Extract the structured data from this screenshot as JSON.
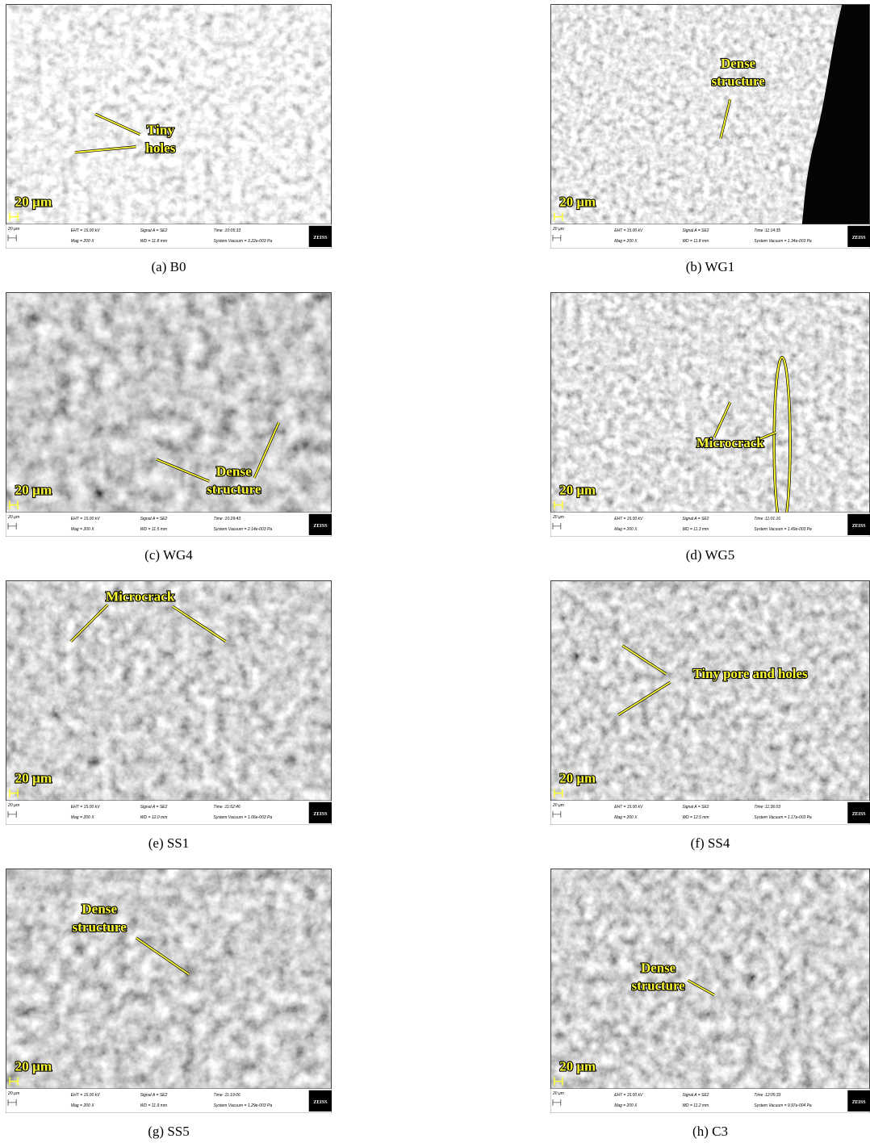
{
  "panels": [
    {
      "caption": "(a) B0",
      "annotations": [
        [
          "Tiny",
          "holes"
        ]
      ],
      "scale_bar": "20 µm",
      "info": {
        "scale": "20 µm",
        "eht": "EHT = 15.00 kV",
        "mag": "Mag = 200 X",
        "signal": "Signal A = SE2",
        "wd": "WD = 11.8 mm",
        "time": "Time :10:05:33",
        "vacuum": "System Vacuum = 3.22e-003 Pa",
        "brand": "ZEISS"
      }
    },
    {
      "caption": "(b) WG1",
      "annotations": [
        [
          "Dense",
          "structure"
        ]
      ],
      "scale_bar": "20 µm",
      "info": {
        "scale": "20 µm",
        "eht": "EHT = 15.00 kV",
        "mag": "Mag = 200 X",
        "signal": "Signal A = SE2",
        "wd": "WD = 11.8 mm",
        "time": "Time :11:14:35",
        "vacuum": "System Vacuum = 1.34e-003 Pa",
        "brand": "ZEISS"
      }
    },
    {
      "caption": "(c) WG4",
      "annotations": [
        [
          "Dense",
          "structure"
        ]
      ],
      "scale_bar": "20 µm",
      "info": {
        "scale": "20 µm",
        "eht": "EHT = 15.00 kV",
        "mag": "Mag = 200 X",
        "signal": "Signal A = SE2",
        "wd": "WD = 11.5 mm",
        "time": "Time :10:29:43",
        "vacuum": "System Vacuum = 2.14e-003 Pa",
        "brand": "ZEISS"
      }
    },
    {
      "caption": "(d) WG5",
      "annotations": [
        [
          "Microcrack"
        ]
      ],
      "scale_bar": "20 µm",
      "info": {
        "scale": "20 µm",
        "eht": "EHT = 15.00 kV",
        "mag": "Mag = 200 X",
        "signal": "Signal A = SE2",
        "wd": "WD = 11.3 mm",
        "time": "Time :11:01:16",
        "vacuum": "System Vacuum = 1.49e-003 Pa",
        "brand": "ZEISS"
      }
    },
    {
      "caption": "(e) SS1",
      "annotations": [
        [
          "Microcrack"
        ]
      ],
      "scale_bar": "20 µm",
      "info": {
        "scale": "20 µm",
        "eht": "EHT = 15.00 kV",
        "mag": "Mag = 200 X",
        "signal": "Signal A = SE2",
        "wd": "WD = 12.0 mm",
        "time": "Time :11:52:46",
        "vacuum": "System Vacuum = 1.06e-003 Pa",
        "brand": "ZEISS"
      }
    },
    {
      "caption": "(f) SS4",
      "annotations": [
        [
          "Tiny pore and holes"
        ]
      ],
      "scale_bar": "20 µm",
      "info": {
        "scale": "20 µm",
        "eht": "EHT = 15.00 kV",
        "mag": "Mag = 200 X",
        "signal": "Signal A = SE2",
        "wd": "WD = 12.5 mm",
        "time": "Time :11:36:03",
        "vacuum": "System Vacuum = 1.17e-003 Pa",
        "brand": "ZEISS"
      }
    },
    {
      "caption": "(g) SS5",
      "annotations": [
        [
          "Dense",
          "structure"
        ]
      ],
      "scale_bar": "20 µm",
      "info": {
        "scale": "20 µm",
        "eht": "EHT = 15.00 kV",
        "mag": "Mag = 200 X",
        "signal": "Signal A = SE2",
        "wd": "WD = 11.9 mm",
        "time": "Time :11:19:06",
        "vacuum": "System Vacuum = 1.29e-003 Pa",
        "brand": "ZEISS"
      }
    },
    {
      "caption": "(h) C3",
      "annotations": [
        [
          "Dense",
          "structure"
        ]
      ],
      "scale_bar": "20 µm",
      "info": {
        "scale": "20 µm",
        "eht": "EHT = 15.00 kV",
        "mag": "Mag = 200 X",
        "signal": "Signal A = SE2",
        "wd": "WD = 11.2 mm",
        "time": "Time :12:05:33",
        "vacuum": "System Vacuum = 9.97e-004 Pa",
        "brand": "ZEISS"
      }
    }
  ]
}
